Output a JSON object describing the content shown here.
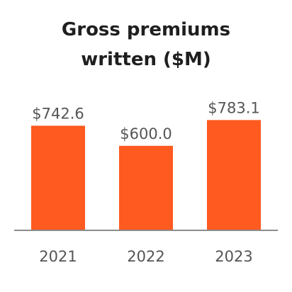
{
  "chart_data": {
    "type": "bar",
    "title": "Gross premiums written ($M)",
    "title_lines": [
      "Gross premiums",
      "written ($M)"
    ],
    "categories": [
      "2021",
      "2022",
      "2023"
    ],
    "values": [
      742.6,
      600.0,
      783.1
    ],
    "value_labels": [
      "$742.6",
      "$600.0",
      "$783.1"
    ],
    "xlabel": "",
    "ylabel": "",
    "ylim": [
      0,
      800
    ],
    "grid": false,
    "legend": "none",
    "bar_color": "#ff5a1f",
    "axis_color": "#8c8c8c"
  }
}
